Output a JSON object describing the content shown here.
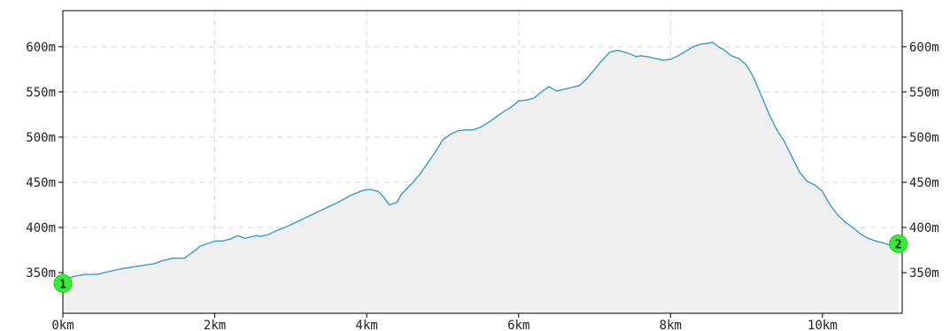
{
  "chart_data": {
    "type": "area",
    "title": "",
    "xlabel": "",
    "ylabel": "",
    "x_unit": "km",
    "y_unit": "m",
    "xlim": [
      0,
      11.05
    ],
    "ylim": [
      305,
      640
    ],
    "x_ticks": [
      0,
      2,
      4,
      6,
      8,
      10
    ],
    "x_tick_labels": [
      "0km",
      "2km",
      "4km",
      "6km",
      "8km",
      "10km"
    ],
    "y_ticks": [
      350,
      400,
      450,
      500,
      550,
      600
    ],
    "y_tick_labels": [
      "350m",
      "400m",
      "450m",
      "500m",
      "550m",
      "600m"
    ],
    "grid": true,
    "line_color": "#3a9cc0",
    "fill_color": "#efefef",
    "marker_color": "#33ee33",
    "series": [
      {
        "x": [
          0,
          0.15,
          0.3,
          0.45,
          0.6,
          0.75,
          0.9,
          1.05,
          1.2,
          1.3,
          1.45,
          1.6,
          1.75,
          1.8,
          1.9,
          2.0,
          2.1,
          2.2,
          2.3,
          2.4,
          2.5,
          2.55,
          2.6,
          2.7,
          2.8,
          3.0,
          3.2,
          3.4,
          3.6,
          3.8,
          3.95,
          4.05,
          4.1,
          4.15,
          4.2,
          4.3,
          4.4,
          4.45,
          4.55,
          4.6,
          4.7,
          4.8,
          4.9,
          5.0,
          5.1,
          5.2,
          5.3,
          5.4,
          5.5,
          5.6,
          5.7,
          5.8,
          5.9,
          6.0,
          6.1,
          6.2,
          6.3,
          6.4,
          6.5,
          6.6,
          6.7,
          6.8,
          6.9,
          7.0,
          7.1,
          7.2,
          7.3,
          7.4,
          7.5,
          7.55,
          7.6,
          7.7,
          7.8,
          7.9,
          8.0,
          8.1,
          8.2,
          8.3,
          8.4,
          8.5,
          8.55,
          8.6,
          8.65,
          8.7,
          8.8,
          8.9,
          9.0,
          9.1,
          9.2,
          9.3,
          9.4,
          9.5,
          9.6,
          9.7,
          9.8,
          9.9,
          10.0,
          10.1,
          10.2,
          10.3,
          10.4,
          10.5,
          10.6,
          10.7,
          10.8,
          10.9,
          11.0
        ],
        "y": [
          341,
          346,
          348,
          348,
          351,
          354,
          356,
          358,
          360,
          363,
          366,
          366,
          375,
          379,
          382,
          385,
          385,
          387,
          391,
          388,
          390,
          391,
          390,
          392,
          396,
          403,
          411,
          419,
          427,
          436,
          441,
          442,
          441,
          440,
          436,
          425,
          428,
          436,
          445,
          449,
          459,
          471,
          483,
          497,
          503,
          507,
          508,
          508,
          511,
          516,
          522,
          528,
          533,
          540,
          541,
          543,
          550,
          556,
          551,
          553,
          555,
          557,
          565,
          575,
          585,
          594,
          596,
          594,
          591,
          589,
          590,
          589,
          587,
          585,
          586,
          590,
          595,
          600,
          603,
          604,
          605,
          602,
          599,
          597,
          590,
          587,
          580,
          565,
          545,
          525,
          508,
          495,
          478,
          461,
          451,
          447,
          440,
          425,
          414,
          406,
          400,
          393,
          388,
          385,
          383,
          380,
          379
        ]
      }
    ],
    "markers": [
      {
        "label": "1",
        "x": 0,
        "y": 338
      },
      {
        "label": "2",
        "x": 11.0,
        "y": 382
      }
    ]
  }
}
